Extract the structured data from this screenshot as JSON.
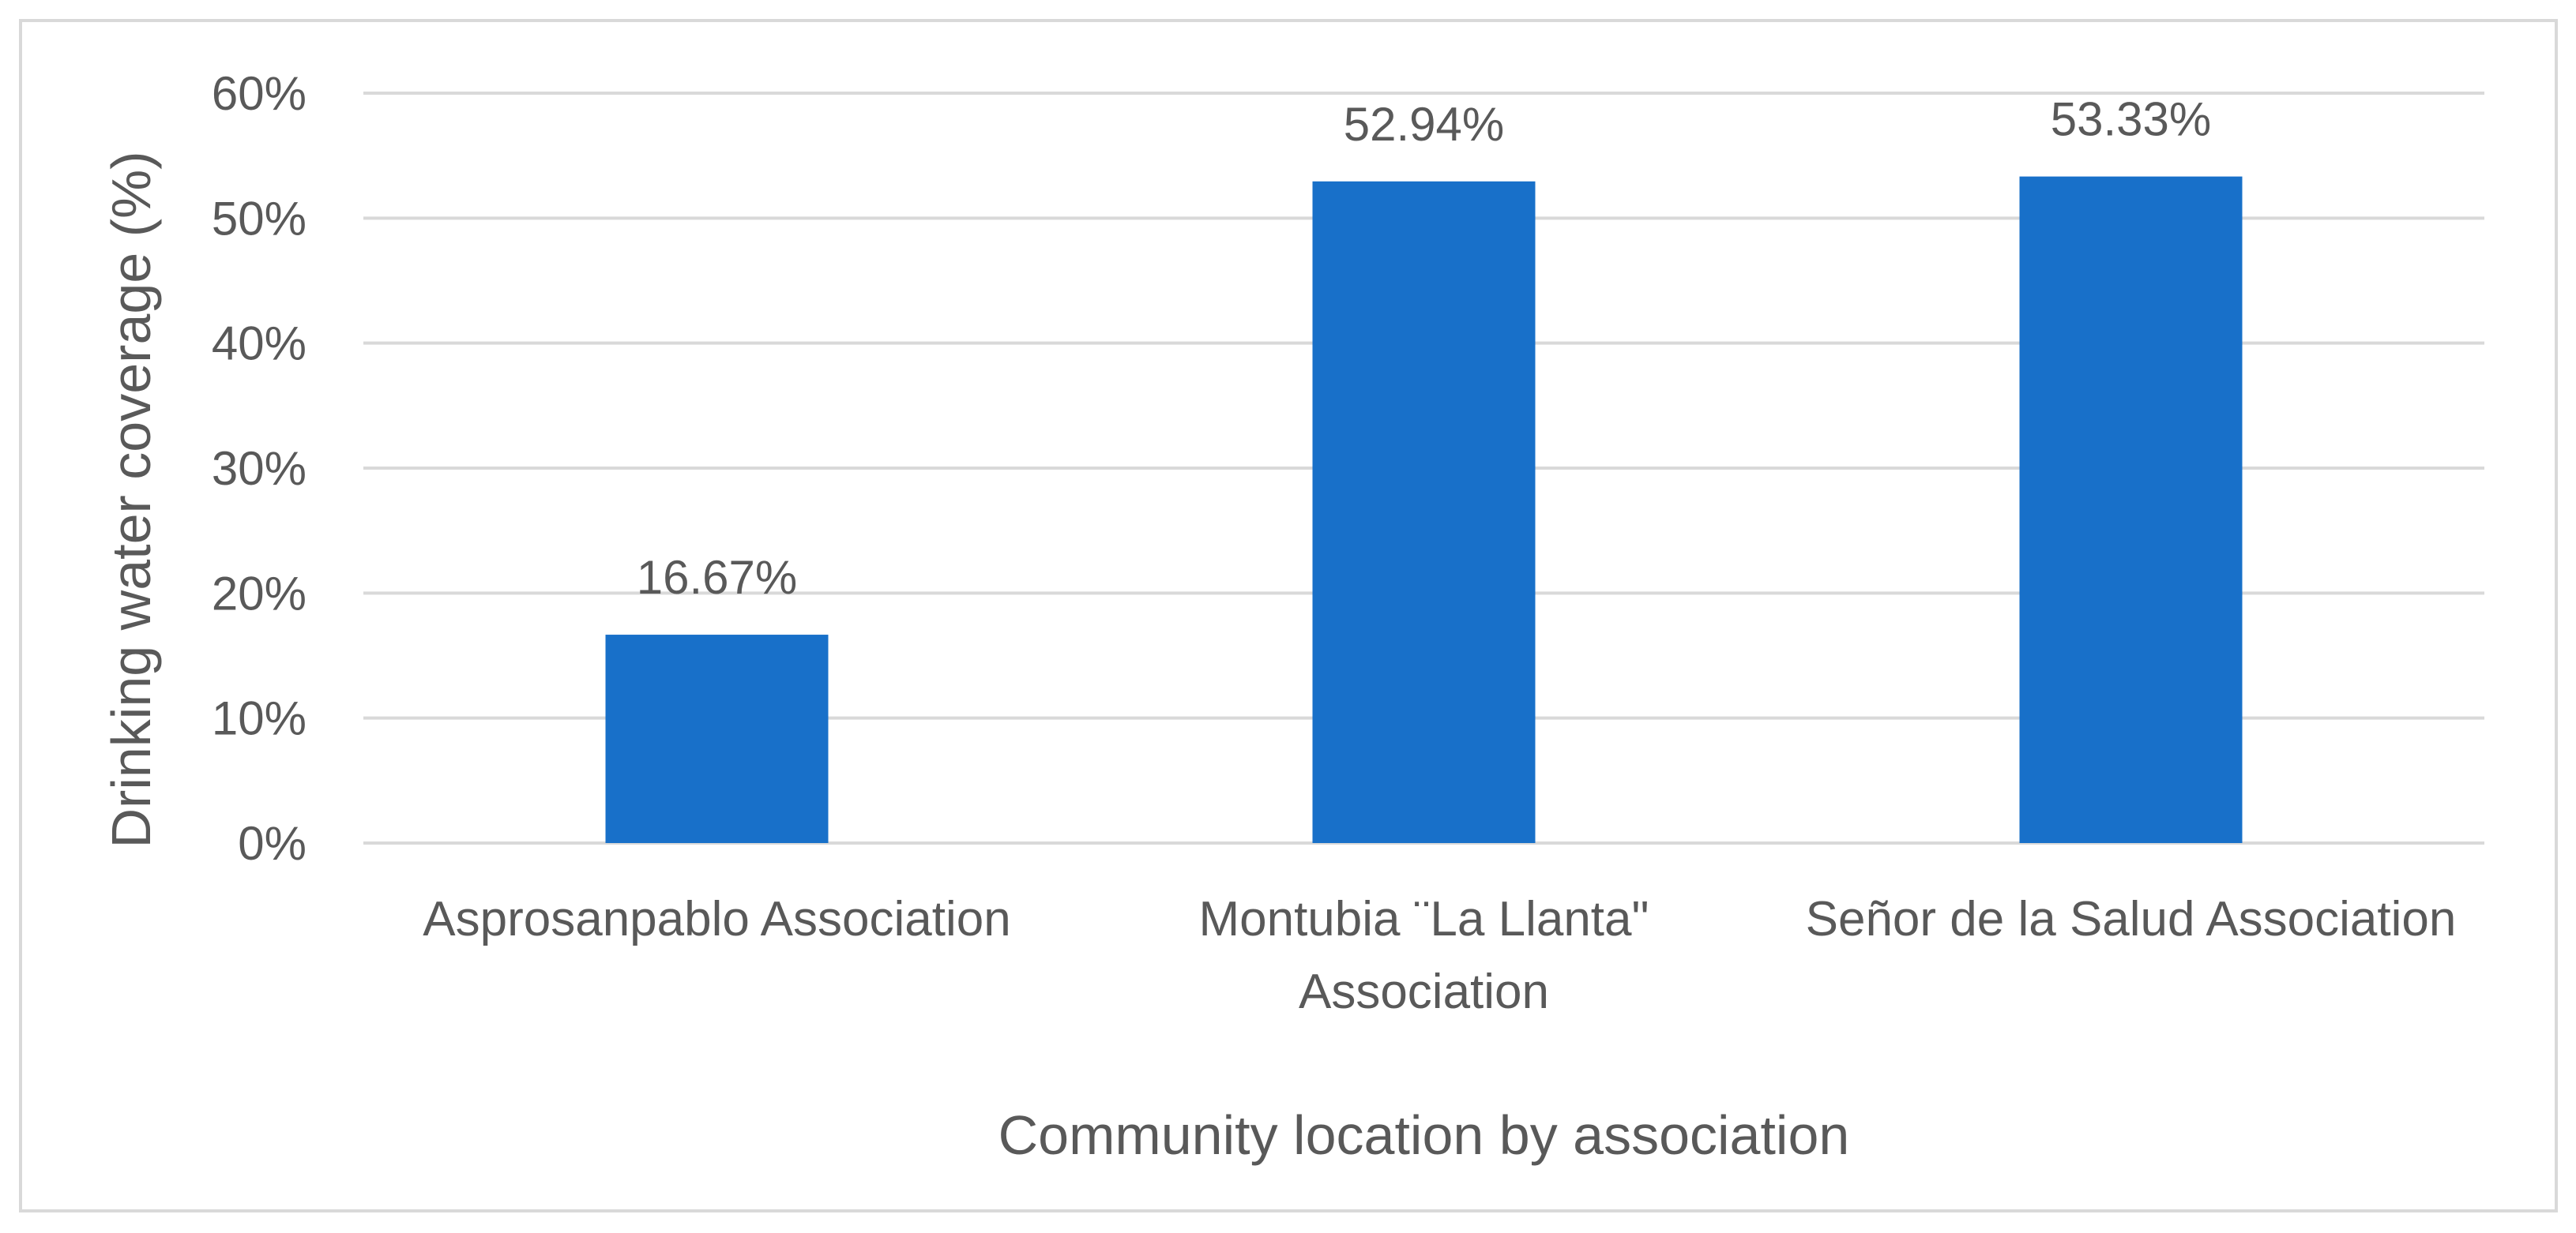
{
  "chart_data": {
    "type": "bar",
    "categories": [
      [
        "Asprosanpablo Association"
      ],
      [
        "Montubia ¨La Llanta\"",
        "Association"
      ],
      [
        "Señor de la Salud Association"
      ]
    ],
    "values": [
      16.67,
      52.94,
      53.33
    ],
    "data_labels": [
      "16.67%",
      "52.94%",
      "53.33%"
    ],
    "title": "",
    "xlabel": "Community location by association",
    "ylabel": "Drinking water coverage (%)",
    "ylim": [
      0,
      60
    ],
    "y_ticks": [
      0,
      10,
      20,
      30,
      40,
      50,
      60
    ],
    "y_tick_labels": [
      "0%",
      "10%",
      "20%",
      "30%",
      "40%",
      "50%",
      "60%"
    ],
    "grid": true,
    "legend": "none",
    "colors": {
      "bar": "#1870c9",
      "grid": "#d9d9d9",
      "text": "#595959",
      "border": "#d9d9d9"
    }
  }
}
